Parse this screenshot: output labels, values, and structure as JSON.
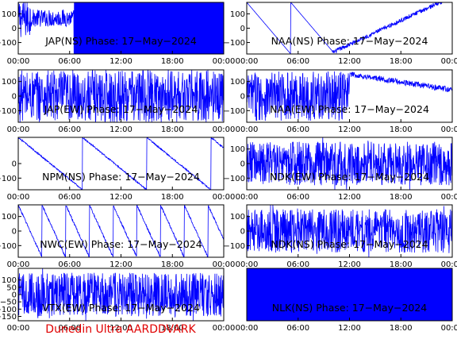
{
  "footer": {
    "credit": "Dunedin Ultra AARDDVARK",
    "color": "#e00000"
  },
  "chart_data": [
    {
      "type": "line",
      "title": "JAP(NS) Phase: 17−May−2024",
      "color": "#0000ff",
      "x_ticks": [
        "00:00",
        "06:00",
        "12:00",
        "18:00",
        "00:00"
      ],
      "y_ticks": [
        "100",
        "0",
        "−100"
      ],
      "ylim": [
        -180,
        180
      ],
      "xlim_hours": [
        0,
        24
      ],
      "series": [
        {
          "pattern": "noise-then-saturated",
          "values": []
        }
      ]
    },
    {
      "type": "line",
      "title": "NAA(NS) Phase: 17−May−2024",
      "color": "#0000ff",
      "x_ticks": [
        "00:00",
        "06:00",
        "12:00",
        "18:00",
        "00:00"
      ],
      "y_ticks": [
        "100",
        "0",
        "−100"
      ],
      "ylim": [
        -180,
        180
      ],
      "xlim_hours": [
        0,
        24
      ],
      "series": [
        {
          "pattern": "wraps-then-drift",
          "values": []
        }
      ]
    },
    {
      "type": "line",
      "title": "JAP(EW) Phase: 17−May−2024",
      "color": "#0000ff",
      "x_ticks": [
        "00:00",
        "06:00",
        "12:00",
        "18:00",
        "00:00"
      ],
      "y_ticks": [
        "100",
        "0",
        "−100"
      ],
      "ylim": [
        -180,
        180
      ],
      "xlim_hours": [
        0,
        24
      ],
      "series": [
        {
          "pattern": "dense-noise",
          "values": []
        }
      ]
    },
    {
      "type": "line",
      "title": "NAA(EW) Phase: 17−May−2024",
      "color": "#0000ff",
      "x_ticks": [
        "00:00",
        "06:00",
        "12:00",
        "18:00",
        "00:00"
      ],
      "y_ticks": [
        "100",
        "0",
        "−100"
      ],
      "ylim": [
        -180,
        180
      ],
      "xlim_hours": [
        0,
        24
      ],
      "series": [
        {
          "pattern": "noise-then-drift",
          "values": []
        }
      ]
    },
    {
      "type": "line",
      "title": "NPM(NS) Phase: 17−May−2024",
      "color": "#0000ff",
      "x_ticks": [
        "00:00",
        "06:00",
        "12:00",
        "18:00",
        "00:00"
      ],
      "y_ticks": [
        "0",
        "−100"
      ],
      "ylim": [
        -180,
        180
      ],
      "xlim_hours": [
        0,
        24
      ],
      "series": [
        {
          "pattern": "slow-sawtooth",
          "values": []
        }
      ]
    },
    {
      "type": "line",
      "title": "NDK(EW) Phase: 17−May−2024",
      "color": "#0000ff",
      "x_ticks": [
        "00:00",
        "06:00",
        "12:00",
        "18:00",
        "00:00"
      ],
      "y_ticks": [
        "100",
        "0",
        "−100"
      ],
      "ylim": [
        -180,
        180
      ],
      "xlim_hours": [
        0,
        24
      ],
      "series": [
        {
          "pattern": "spiky-noise",
          "values": []
        }
      ]
    },
    {
      "type": "line",
      "title": "NWC(EW) Phase: 17−May−2024",
      "color": "#0000ff",
      "x_ticks": [
        "00:00",
        "06:00",
        "12:00",
        "18:00",
        "00:00"
      ],
      "y_ticks": [
        "100",
        "0",
        "−100"
      ],
      "ylim": [
        -180,
        180
      ],
      "xlim_hours": [
        0,
        24
      ],
      "series": [
        {
          "pattern": "fast-sawtooth",
          "values": []
        }
      ]
    },
    {
      "type": "line",
      "title": "NDK(NS) Phase: 17−May−2024",
      "color": "#0000ff",
      "x_ticks": [
        "00:00",
        "06:00",
        "12:00",
        "18:00",
        "00:00"
      ],
      "y_ticks": [
        "100",
        "0",
        "−100"
      ],
      "ylim": [
        -180,
        180
      ],
      "xlim_hours": [
        0,
        24
      ],
      "series": [
        {
          "pattern": "spiky-noise",
          "values": []
        }
      ]
    },
    {
      "type": "line",
      "title": "VTX(EW) Phase: 17−May−2024",
      "color": "#0000ff",
      "x_ticks": [
        "00:00",
        "06:00",
        "12:00",
        "18:00",
        "00:00"
      ],
      "y_ticks": [
        "100",
        "50",
        "0",
        "−50",
        "−100",
        "−150"
      ],
      "ylim": [
        -180,
        180
      ],
      "xlim_hours": [
        0,
        24
      ],
      "series": [
        {
          "pattern": "spiky-noise",
          "values": []
        }
      ]
    },
    {
      "type": "line",
      "title": "NLK(NS) Phase: 17−May−2024",
      "color": "#0000ff",
      "x_ticks": [
        "00:00",
        "06:00",
        "12:00",
        "18:00",
        "00:00"
      ],
      "y_ticks": [],
      "ylim": [
        -180,
        180
      ],
      "xlim_hours": [
        0,
        24
      ],
      "series": [
        {
          "pattern": "saturated",
          "values": []
        }
      ]
    }
  ]
}
